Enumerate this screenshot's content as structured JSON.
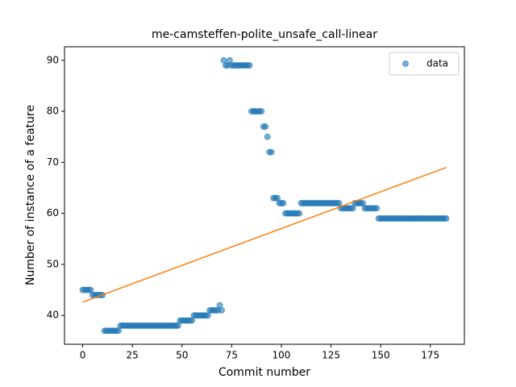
{
  "chart_data": {
    "type": "scatter",
    "title": "me-camsteffen-polite_unsafe_call-linear",
    "x_label": "Commit number",
    "y_label": "Number of instance of a feature",
    "xlim": [
      -9.15,
      192.15
    ],
    "ylim": [
      34.35,
      92.65
    ],
    "xticks": [
      0,
      25,
      50,
      75,
      100,
      125,
      150,
      175
    ],
    "yticks": [
      40,
      50,
      60,
      70,
      80,
      90
    ],
    "legend": "upper right",
    "series": [
      {
        "name": "data",
        "type": "scatter",
        "color": "#1f77b4",
        "x": [
          0,
          1,
          2,
          3,
          4,
          5,
          6,
          7,
          8,
          9,
          10,
          11,
          12,
          13,
          14,
          15,
          16,
          17,
          18,
          19,
          20,
          21,
          22,
          23,
          24,
          25,
          26,
          27,
          28,
          29,
          30,
          31,
          32,
          33,
          34,
          35,
          36,
          37,
          38,
          39,
          40,
          41,
          42,
          43,
          44,
          45,
          46,
          47,
          48,
          49,
          50,
          51,
          52,
          53,
          54,
          55,
          56,
          57,
          58,
          59,
          60,
          61,
          62,
          63,
          64,
          65,
          66,
          67,
          68,
          69,
          70,
          71,
          72,
          73,
          74,
          75,
          76,
          77,
          78,
          79,
          80,
          81,
          82,
          83,
          84,
          85,
          86,
          87,
          88,
          89,
          90,
          91,
          92,
          93,
          94,
          95,
          96,
          97,
          98,
          99,
          100,
          101,
          102,
          103,
          104,
          105,
          106,
          107,
          108,
          109,
          110,
          111,
          112,
          113,
          114,
          115,
          116,
          117,
          118,
          119,
          120,
          121,
          122,
          123,
          124,
          125,
          126,
          127,
          128,
          129,
          130,
          131,
          132,
          133,
          134,
          135,
          136,
          137,
          138,
          139,
          140,
          141,
          142,
          143,
          144,
          145,
          146,
          147,
          148,
          149,
          150,
          151,
          152,
          153,
          154,
          155,
          156,
          157,
          158,
          159,
          160,
          161,
          162,
          163,
          164,
          165,
          166,
          167,
          168,
          169,
          170,
          171,
          172,
          173,
          174,
          175,
          176,
          177,
          178,
          179,
          180,
          181,
          182,
          183
        ],
        "values": [
          45,
          45,
          45,
          45,
          45,
          44,
          44,
          44,
          44,
          44,
          44,
          37,
          37,
          37,
          37,
          37,
          37,
          37,
          37,
          38,
          38,
          38,
          38,
          38,
          38,
          38,
          38,
          38,
          38,
          38,
          38,
          38,
          38,
          38,
          38,
          38,
          38,
          38,
          38,
          38,
          38,
          38,
          38,
          38,
          38,
          38,
          38,
          38,
          38,
          39,
          39,
          39,
          39,
          39,
          39,
          39,
          40,
          40,
          40,
          40,
          40,
          40,
          40,
          40,
          41,
          41,
          41,
          41,
          41,
          42,
          41,
          90,
          89,
          89,
          90,
          89,
          89,
          89,
          89,
          89,
          89,
          89,
          89,
          89,
          89,
          80,
          80,
          80,
          80,
          80,
          80,
          77,
          77,
          75,
          72,
          72,
          63,
          63,
          63,
          62,
          62,
          62,
          60,
          60,
          60,
          60,
          60,
          60,
          60,
          60,
          62,
          62,
          62,
          62,
          62,
          62,
          62,
          62,
          62,
          62,
          62,
          62,
          62,
          62,
          62,
          62,
          62,
          62,
          62,
          62,
          61,
          61,
          61,
          61,
          61,
          61,
          61,
          62,
          62,
          62,
          62,
          62,
          61,
          61,
          61,
          61,
          61,
          61,
          61,
          59,
          59,
          59,
          59,
          59,
          59,
          59,
          59,
          59,
          59,
          59,
          59,
          59,
          59,
          59,
          59,
          59,
          59,
          59,
          59,
          59,
          59,
          59,
          59,
          59,
          59,
          59,
          59,
          59,
          59,
          59,
          59,
          59,
          59,
          59
        ]
      },
      {
        "type": "line",
        "color": "#ff7f0e",
        "x": [
          0,
          183
        ],
        "values": [
          42.6,
          69
        ]
      }
    ]
  }
}
